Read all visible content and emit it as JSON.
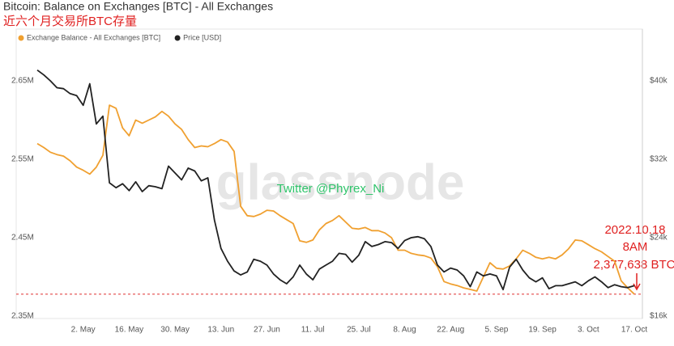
{
  "chart_data": {
    "type": "line",
    "title": "Bitcoin: Balance on Exchanges [BTC] - All Exchanges",
    "subtitle": "近六个月交易所BTC存量",
    "watermark": "glassnode",
    "annotations": [
      "Twitter @Phyrex_Ni",
      "2022.10.18",
      "8AM",
      "2,377,638 BTC"
    ],
    "categories": [
      null,
      null,
      null,
      null,
      null,
      null,
      null,
      "2. May",
      null,
      null,
      null,
      null,
      null,
      null,
      "16. May",
      null,
      null,
      null,
      null,
      null,
      null,
      "30. May",
      null,
      null,
      null,
      null,
      null,
      null,
      "13. Jun",
      null,
      null,
      null,
      null,
      null,
      null,
      "27. Jun",
      null,
      null,
      null,
      null,
      null,
      null,
      "11. Jul",
      null,
      null,
      null,
      null,
      null,
      null,
      "25. Jul",
      null,
      null,
      null,
      null,
      null,
      null,
      "8. Aug",
      null,
      null,
      null,
      null,
      null,
      null,
      "22. Aug",
      null,
      null,
      null,
      null,
      null,
      null,
      "5. Sep",
      null,
      null,
      null,
      null,
      null,
      null,
      "19. Sep",
      null,
      null,
      null,
      null,
      null,
      null,
      "3. Oct",
      null,
      null,
      null,
      null,
      null,
      null,
      "17. Oct"
    ],
    "series": [
      {
        "name": "Exchange Balance - All Exchanges [BTC]",
        "color": "#f0a030",
        "axis": "y",
        "values": [
          2.57,
          2.565,
          2.559,
          2.556,
          2.554,
          2.548,
          2.54,
          2.536,
          2.531,
          2.54,
          2.555,
          2.619,
          2.615,
          2.59,
          2.58,
          2.6,
          2.596,
          2.6,
          2.604,
          2.611,
          2.605,
          2.595,
          2.588,
          2.575,
          2.565,
          2.567,
          2.566,
          2.57,
          2.575,
          2.572,
          2.56,
          2.49,
          2.478,
          2.477,
          2.48,
          2.485,
          2.484,
          2.478,
          2.473,
          2.468,
          2.446,
          2.444,
          2.447,
          2.46,
          2.468,
          2.472,
          2.478,
          2.47,
          2.462,
          2.461,
          2.463,
          2.459,
          2.459,
          2.456,
          2.45,
          2.434,
          2.434,
          2.43,
          2.428,
          2.427,
          2.424,
          2.413,
          2.394,
          2.391,
          2.389,
          2.386,
          2.384,
          2.382,
          2.4,
          2.418,
          2.411,
          2.41,
          2.414,
          2.423,
          2.434,
          2.43,
          2.425,
          2.423,
          2.425,
          2.423,
          2.428,
          2.436,
          2.447,
          2.446,
          2.441,
          2.436,
          2.432,
          2.426,
          2.42,
          2.395,
          2.386,
          2.378
        ]
      },
      {
        "name": "Price [USD]",
        "color": "#222222",
        "axis": "y2",
        "values": [
          41.1,
          40.6,
          40.0,
          39.3,
          39.2,
          38.7,
          38.5,
          37.5,
          39.7,
          35.6,
          36.4,
          29.6,
          29.1,
          29.5,
          28.8,
          29.7,
          28.7,
          29.3,
          29.2,
          29.0,
          31.3,
          30.6,
          29.9,
          31.1,
          30.8,
          29.8,
          30.1,
          25.8,
          22.9,
          21.6,
          20.6,
          20.2,
          20.5,
          21.8,
          21.6,
          21.2,
          20.3,
          19.7,
          19.3,
          20.0,
          21.2,
          20.3,
          19.7,
          20.8,
          21.2,
          21.6,
          22.4,
          22.3,
          21.5,
          22.2,
          23.6,
          23.1,
          23.3,
          23.6,
          23.5,
          22.9,
          23.7,
          24.0,
          24.1,
          23.9,
          23.1,
          21.2,
          20.5,
          20.9,
          20.7,
          20.1,
          19.0,
          20.5,
          20.1,
          20.3,
          20.1,
          18.7,
          21.0,
          21.8,
          20.7,
          19.9,
          19.5,
          19.9,
          18.8,
          19.1,
          19.1,
          19.3,
          19.5,
          19.1,
          19.6,
          20.0,
          19.5,
          18.9,
          19.2,
          19.0,
          18.9,
          19.1
        ]
      }
    ],
    "ylim": [
      2.35,
      2.7
    ],
    "yticks": [
      {
        "value": 2.35,
        "label": "2.35M"
      },
      {
        "value": 2.45,
        "label": "2.45M"
      },
      {
        "value": 2.55,
        "label": "2.55M"
      },
      {
        "value": 2.65,
        "label": "2.65M"
      }
    ],
    "y2lim": [
      16,
      44
    ],
    "y2ticks": [
      {
        "value": 16,
        "label": "$16k"
      },
      {
        "value": 24,
        "label": "$24k"
      },
      {
        "value": 32,
        "label": "$32k"
      },
      {
        "value": 40,
        "label": "$40k"
      }
    ],
    "reference_line": {
      "value": 2.378,
      "color": "#e03030"
    },
    "grid": false,
    "legend": "top-left"
  }
}
